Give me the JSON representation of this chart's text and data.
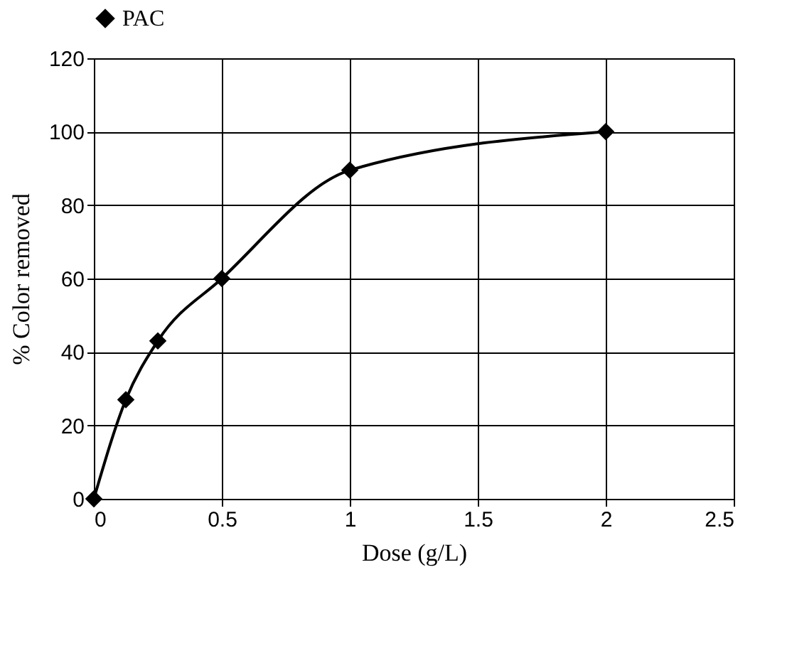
{
  "chart_data": {
    "type": "line",
    "xlabel": "Dose (g/L)",
    "ylabel": "% Color removed",
    "x": [
      0,
      0.125,
      0.25,
      0.5,
      1,
      2
    ],
    "series": [
      {
        "name": "PAC",
        "color": "#000000",
        "values": [
          0,
          27,
          43,
          60,
          89.5,
          100
        ]
      }
    ],
    "xlim": [
      0,
      2.5
    ],
    "xticks": [
      0,
      0.5,
      1,
      1.5,
      2,
      2.5
    ],
    "ylim": [
      0,
      120
    ],
    "yticks": [
      0,
      20,
      40,
      60,
      80,
      100,
      120
    ],
    "grid": true,
    "legend": "top",
    "marker": "diamond",
    "line_style": "solid"
  }
}
